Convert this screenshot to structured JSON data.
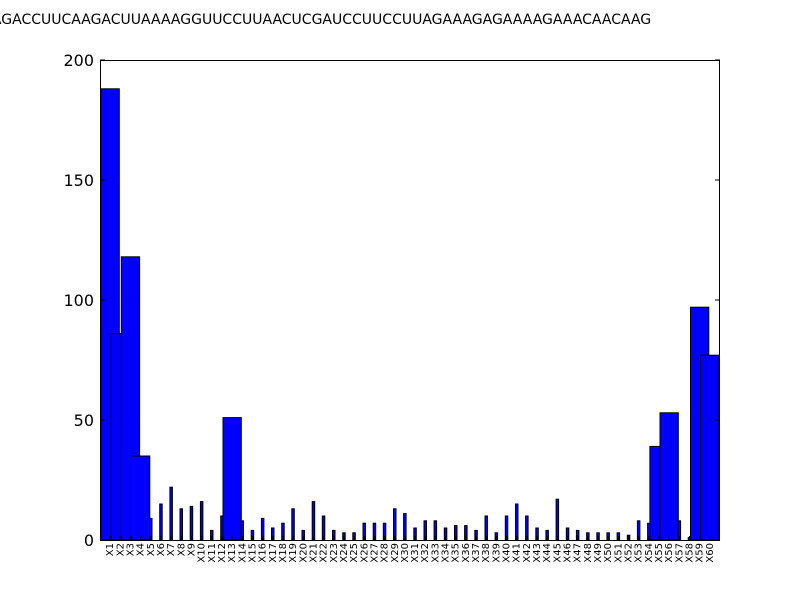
{
  "chart_data": {
    "type": "bar",
    "title": "AAAGACCUUCAAGACUUAAAAGGUUCCUUAACUCGAUCCUUCCUUAGAAAGAGAAAAGAAACAACAAG",
    "xlabel": "",
    "ylabel": "",
    "ylim": [
      0,
      200
    ],
    "yticks": [
      0,
      50,
      100,
      150,
      200
    ],
    "grid": false,
    "bar_color": "#0000ff",
    "categories": [
      "X1",
      "X2",
      "X3",
      "X4",
      "X5",
      "X6",
      "X7",
      "X8",
      "X9",
      "X10",
      "X11",
      "X12",
      "X13",
      "X14",
      "X15",
      "X16",
      "X17",
      "X18",
      "X19",
      "X20",
      "X21",
      "X22",
      "X23",
      "X24",
      "X25",
      "X26",
      "X27",
      "X28",
      "X29",
      "X30",
      "X31",
      "X32",
      "X33",
      "X34",
      "X35",
      "X36",
      "X37",
      "X38",
      "X39",
      "X40",
      "X41",
      "X42",
      "X43",
      "X44",
      "X45",
      "X46",
      "X47",
      "X48",
      "X49",
      "X50",
      "X51",
      "X52",
      "X53",
      "X54",
      "X55",
      "X56",
      "X57",
      "X58",
      "X59",
      "X60"
    ],
    "values": [
      188,
      86,
      118,
      35,
      9,
      15,
      22,
      13,
      14,
      16,
      4,
      10,
      51,
      8,
      4,
      9,
      5,
      7,
      13,
      4,
      16,
      10,
      4,
      3,
      3,
      7,
      7,
      7,
      13,
      11,
      5,
      8,
      8,
      5,
      6,
      6,
      4,
      10,
      3,
      10,
      15,
      10,
      5,
      4,
      17,
      5,
      4,
      3,
      3,
      3,
      3,
      2,
      8,
      7,
      39,
      53,
      8,
      1,
      97,
      77
    ]
  }
}
